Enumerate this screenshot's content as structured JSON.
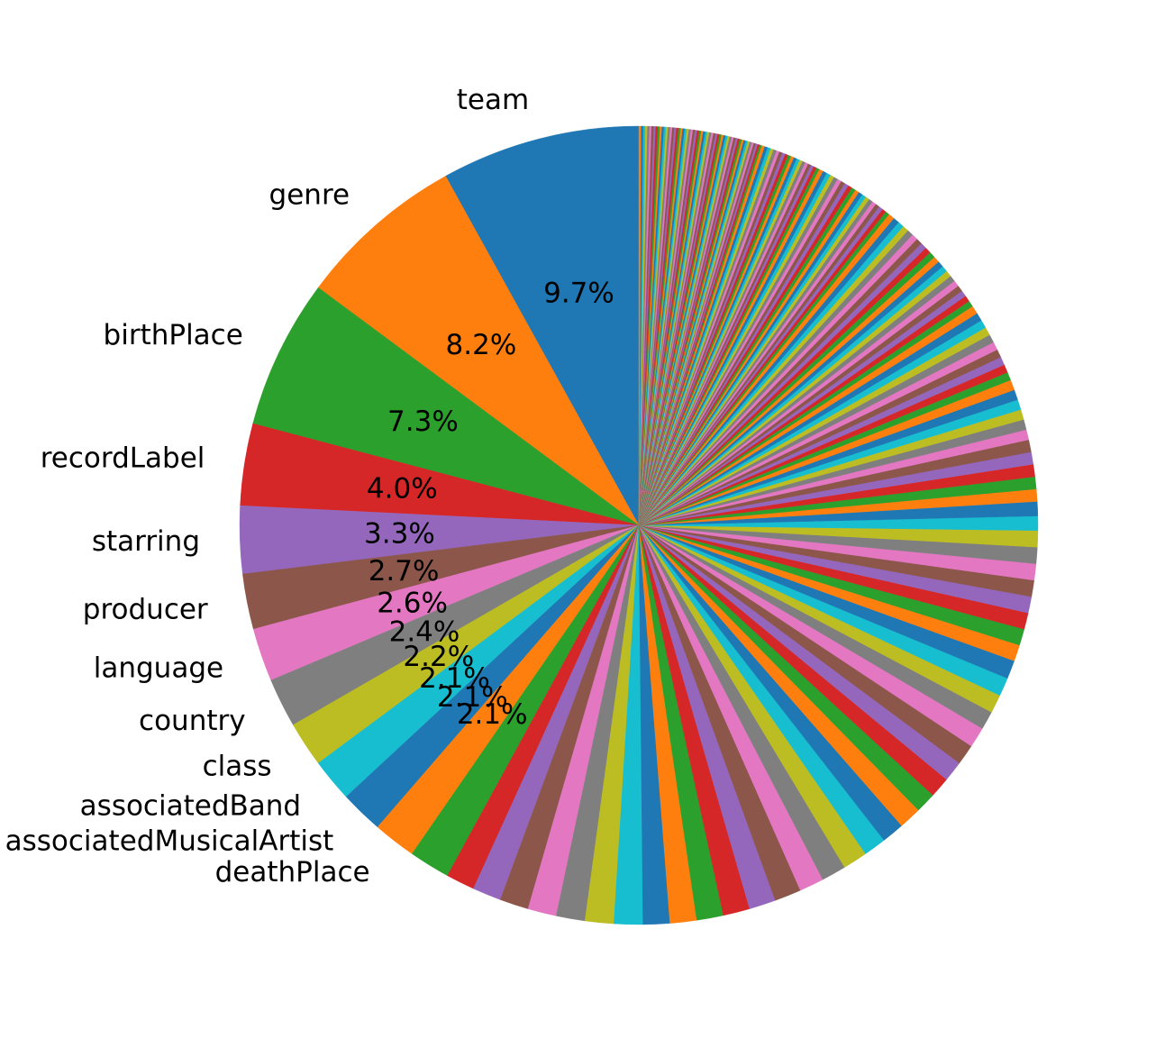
{
  "chart_data": {
    "type": "pie",
    "start_angle_deg": 90,
    "direction": "counterclockwise",
    "labeled_slices": [
      {
        "label": "team",
        "percent": 9.7,
        "color": "#1f77b4",
        "pct_text": "9.7%"
      },
      {
        "label": "genre",
        "percent": 8.2,
        "color": "#ff7f0e",
        "pct_text": "8.2%"
      },
      {
        "label": "birthPlace",
        "percent": 7.3,
        "color": "#2ca02c",
        "pct_text": "7.3%"
      },
      {
        "label": "recordLabel",
        "percent": 4.0,
        "color": "#d62728",
        "pct_text": "4.0%"
      },
      {
        "label": "starring",
        "percent": 3.3,
        "color": "#9467bd",
        "pct_text": "3.3%"
      },
      {
        "label": "producer",
        "percent": 2.7,
        "color": "#8c564b",
        "pct_text": "2.7%"
      },
      {
        "label": "language",
        "percent": 2.6,
        "color": "#e377c2",
        "pct_text": "2.6%"
      },
      {
        "label": "country",
        "percent": 2.4,
        "color": "#7f7f7f",
        "pct_text": "2.4%"
      },
      {
        "label": "class",
        "percent": 2.2,
        "color": "#bcbd22",
        "pct_text": "2.2%"
      },
      {
        "label": "associatedBand",
        "percent": 2.1,
        "color": "#17becf",
        "pct_text": "2.1%"
      },
      {
        "label": "associatedMusicalArtist",
        "percent": 2.1,
        "color": "#1f77b4",
        "pct_text": "2.1%"
      },
      {
        "label": "deathPlace",
        "percent": 2.1,
        "color": "#ff7f0e",
        "pct_text": "2.1%"
      }
    ],
    "unlabeled_slices_percent": [
      2.0,
      1.4,
      1.4,
      1.4,
      1.4,
      1.4,
      1.4,
      1.4,
      1.3,
      1.3,
      1.3,
      1.3,
      1.3,
      1.3,
      1.2,
      1.2,
      1.2,
      1.1,
      1.1,
      1.1,
      1.0,
      1.0,
      1.0,
      1.0,
      1.0,
      0.9,
      0.9,
      0.9,
      0.9,
      0.8,
      0.8,
      0.8,
      0.8,
      0.8,
      0.8,
      0.8,
      0.8,
      0.7,
      0.7,
      0.6,
      0.6,
      0.6,
      0.6,
      0.6,
      0.5,
      0.5,
      0.5,
      0.5,
      0.5,
      0.5,
      0.4,
      0.4,
      0.4,
      0.4,
      0.4,
      0.4,
      0.4,
      0.4,
      0.4,
      0.4,
      0.3,
      0.3,
      0.3,
      0.3,
      0.3,
      0.3,
      0.3,
      0.3,
      0.3,
      0.3,
      0.3,
      0.3,
      0.3,
      0.3,
      0.3,
      0.3,
      0.3,
      0.3,
      0.3,
      0.3,
      0.2,
      0.2,
      0.2,
      0.2,
      0.2,
      0.2,
      0.2,
      0.2,
      0.2,
      0.2,
      0.2,
      0.2,
      0.2,
      0.2,
      0.2,
      0.2,
      0.2,
      0.2,
      0.2,
      0.2,
      0.15,
      0.15,
      0.15,
      0.15,
      0.15,
      0.15,
      0.15,
      0.15,
      0.15,
      0.15,
      0.15,
      0.15,
      0.15,
      0.15,
      0.15,
      0.15,
      0.15,
      0.15,
      0.15,
      0.15,
      0.1,
      0.1,
      0.1,
      0.1,
      0.1,
      0.1,
      0.1,
      0.1,
      0.1,
      0.1,
      0.1,
      0.1,
      0.1,
      0.1,
      0.1,
      0.1,
      0.1,
      0.1,
      0.1,
      0.1,
      0.1,
      0.1,
      0.1,
      0.1,
      0.1,
      0.1,
      0.1,
      0.1,
      0.1,
      0.1,
      0.1,
      0.1,
      0.1,
      0.1,
      0.1,
      0.1,
      0.1,
      0.1,
      0.1,
      0.1,
      0.1,
      0.1,
      0.1,
      0.1,
      0.1,
      0.1,
      0.1,
      0.1,
      0.1,
      0.1,
      0.1,
      0.1,
      0.1,
      0.1,
      0.1,
      0.1,
      0.1,
      0.1,
      0.1,
      0.1
    ],
    "palette": [
      "#1f77b4",
      "#ff7f0e",
      "#2ca02c",
      "#d62728",
      "#9467bd",
      "#8c564b",
      "#e377c2",
      "#7f7f7f",
      "#bcbd22",
      "#17becf"
    ],
    "title": "",
    "legend": "none"
  }
}
